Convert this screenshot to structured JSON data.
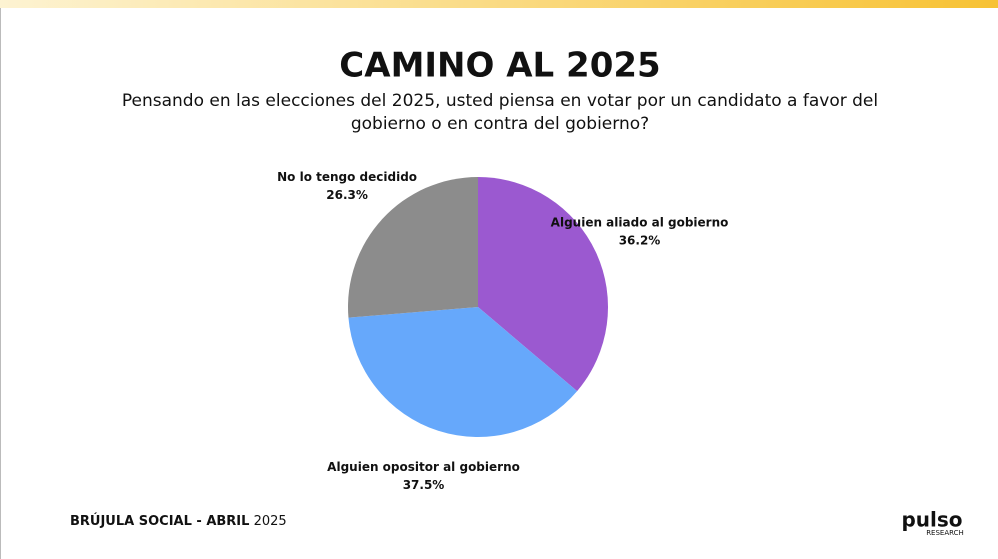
{
  "chart_data": {
    "type": "pie",
    "title": "CAMINO AL 2025",
    "subtitle": [
      "Pensando en las elecciones del 2025, usted piensa en votar por un candidato a favor del",
      "gobierno o en contra del gobierno?"
    ],
    "categories": [
      "Alguien aliado al gobierno",
      "Alguien opositor al gobierno",
      "No lo tengo decidido"
    ],
    "values": [
      36.2,
      37.5,
      26.3
    ],
    "value_labels": [
      "36.2%",
      "37.5%",
      "26.3%"
    ],
    "colors": [
      "#9b59d0",
      "#66a8fb",
      "#8c8c8c"
    ]
  },
  "footer": {
    "label": "BRÚJULA SOCIAL - ABRIL",
    "year": "2025"
  },
  "logo": {
    "brand": "pulso",
    "tagline": "RESEARCH"
  }
}
